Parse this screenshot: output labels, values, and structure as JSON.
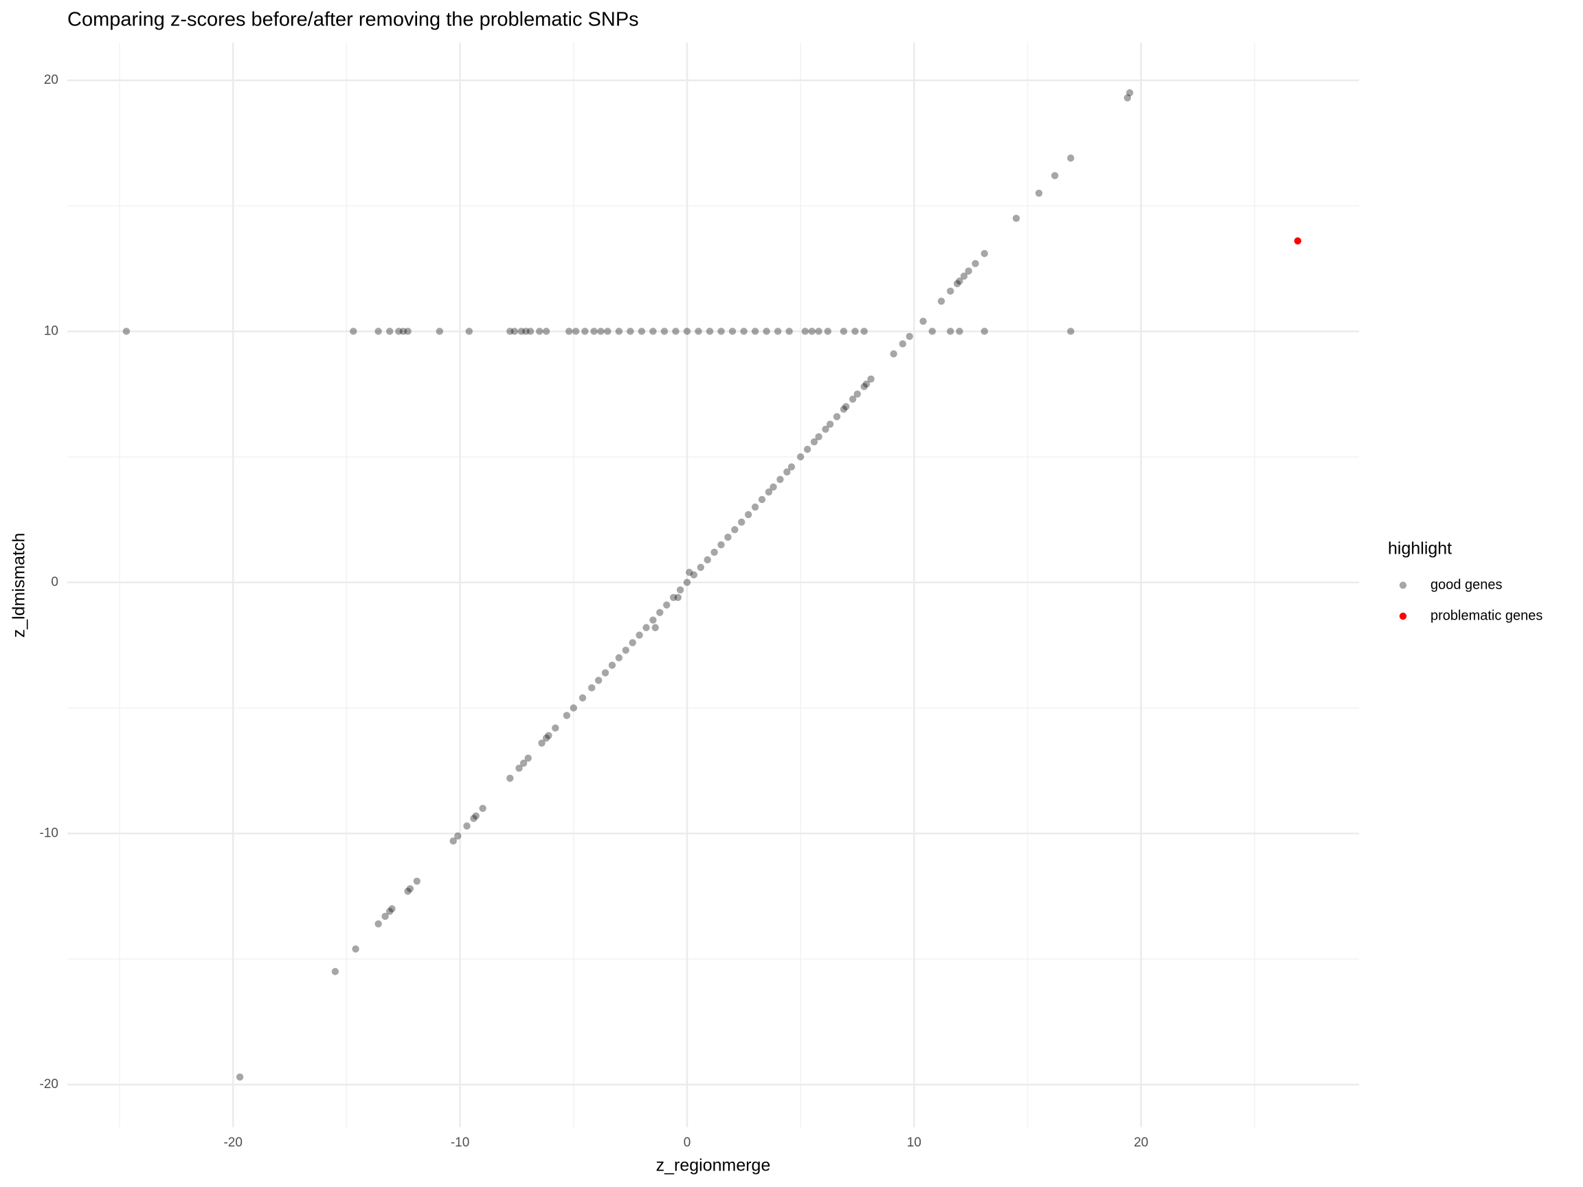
{
  "chart_data": {
    "type": "scatter",
    "title": "Comparing z-scores before/after removing the problematic SNPs",
    "x_label": "z_regionmerge",
    "y_label": "z_ldmismatch",
    "legend_title": "highlight",
    "legend_position": "right",
    "grid": true,
    "xlim": [
      -27.3,
      29.6
    ],
    "ylim": [
      -21.7,
      21.5
    ],
    "xticks": [
      -20,
      -10,
      0,
      10,
      20
    ],
    "yticks": [
      -20,
      -10,
      0,
      10,
      20
    ],
    "x_minor_gridlines": [
      -25,
      -15,
      -5,
      5,
      15,
      25
    ],
    "y_minor_gridlines": [
      -15,
      -5,
      5,
      15
    ],
    "series": [
      {
        "name": "good genes",
        "color": "#000000",
        "opacity": 0.35,
        "x": [
          -24.7,
          -14.7,
          -13.6,
          -13.1,
          -12.7,
          -12.5,
          -12.3,
          -10.9,
          -9.6,
          -7.8,
          -7.6,
          -7.3,
          -7.1,
          -6.9,
          -6.5,
          -6.2,
          -5.2,
          -4.9,
          -4.5,
          -4.1,
          -3.8,
          -3.5,
          -3.0,
          -2.5,
          -2.0,
          -1.5,
          -1.0,
          -0.5,
          0,
          0.5,
          1.0,
          1.5,
          2.0,
          2.5,
          3.0,
          3.5,
          4.0,
          4.5,
          5.2,
          5.5,
          5.8,
          6.2,
          6.9,
          7.4,
          7.8,
          10.8,
          11.6,
          12.0,
          13.1,
          16.9,
          -19.7,
          -15.5,
          -14.6,
          -13.6,
          -13.3,
          -13.1,
          -13.0,
          -12.3,
          -12.2,
          -11.9,
          -10.3,
          -10.1,
          -9.7,
          -9.4,
          -9.3,
          -9.0,
          -7.8,
          -7.4,
          -7.2,
          -7.0,
          -6.4,
          -6.2,
          -6.1,
          -5.8,
          -5.3,
          -5.0,
          -4.6,
          -4.2,
          -3.9,
          -3.6,
          -3.3,
          -3.0,
          -2.7,
          -2.4,
          -2.1,
          -1.8,
          -1.5,
          -1.2,
          -0.9,
          -0.6,
          -0.3,
          0,
          0.3,
          0.6,
          0.9,
          1.2,
          1.5,
          1.8,
          2.1,
          2.4,
          2.7,
          3.0,
          3.3,
          3.6,
          3.8,
          4.1,
          4.4,
          4.6,
          5.0,
          5.3,
          5.6,
          5.8,
          6.1,
          6.3,
          6.6,
          6.9,
          7.0,
          7.3,
          7.5,
          7.8,
          7.9,
          8.1,
          9.1,
          9.5,
          9.8,
          10.4,
          11.2,
          11.6,
          11.9,
          12.0,
          12.2,
          12.4,
          12.7,
          13.1,
          14.5,
          15.5,
          16.2,
          16.9,
          19.4,
          19.5,
          -1.4,
          0.1,
          -0.4
        ],
        "y": [
          10,
          10,
          10,
          10,
          10,
          10,
          10,
          10,
          10,
          10,
          10,
          10,
          10,
          10,
          10,
          10,
          10,
          10,
          10,
          10,
          10,
          10,
          10,
          10,
          10,
          10,
          10,
          10,
          10,
          10,
          10,
          10,
          10,
          10,
          10,
          10,
          10,
          10,
          10,
          10,
          10,
          10,
          10,
          10,
          10,
          10,
          10,
          10,
          10,
          10,
          -19.7,
          -15.5,
          -14.6,
          -13.6,
          -13.3,
          -13.1,
          -13.0,
          -12.3,
          -12.2,
          -11.9,
          -10.3,
          -10.1,
          -9.7,
          -9.4,
          -9.3,
          -9.0,
          -7.8,
          -7.4,
          -7.2,
          -7.0,
          -6.4,
          -6.2,
          -6.1,
          -5.8,
          -5.3,
          -5.0,
          -4.6,
          -4.2,
          -3.9,
          -3.6,
          -3.3,
          -3.0,
          -2.7,
          -2.4,
          -2.1,
          -1.8,
          -1.5,
          -1.2,
          -0.9,
          -0.6,
          -0.3,
          0,
          0.3,
          0.6,
          0.9,
          1.2,
          1.5,
          1.8,
          2.1,
          2.4,
          2.7,
          3.0,
          3.3,
          3.6,
          3.8,
          4.1,
          4.4,
          4.6,
          5.0,
          5.3,
          5.6,
          5.8,
          6.1,
          6.3,
          6.6,
          6.9,
          7.0,
          7.3,
          7.5,
          7.8,
          7.9,
          8.1,
          9.1,
          9.5,
          9.8,
          10.4,
          11.2,
          11.6,
          11.9,
          12.0,
          12.2,
          12.4,
          12.7,
          13.1,
          14.5,
          15.5,
          16.2,
          16.9,
          19.3,
          19.5,
          -1.8,
          0.4,
          -0.6
        ]
      },
      {
        "name": "problematic genes",
        "color": "#ff0000",
        "opacity": 1,
        "x": [
          26.9
        ],
        "y": [
          13.6
        ]
      }
    ]
  }
}
